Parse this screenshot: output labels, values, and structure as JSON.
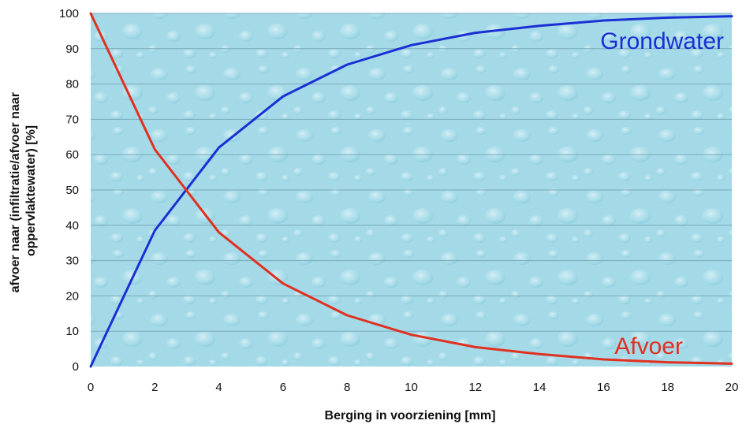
{
  "chart_data": {
    "type": "line",
    "xlabel": "Berging in voorziening [mm]",
    "ylabel_line1": "afvoer naar (infiltratie/afvoer naar",
    "ylabel_line2": "oppervlaktewater) [%]",
    "xlim": [
      0,
      20
    ],
    "ylim": [
      0,
      100
    ],
    "x_ticks": [
      0,
      2,
      4,
      6,
      8,
      10,
      12,
      14,
      16,
      18,
      20
    ],
    "y_ticks": [
      0,
      10,
      20,
      30,
      40,
      50,
      60,
      70,
      80,
      90,
      100
    ],
    "grid": true,
    "x": [
      0,
      2,
      4,
      6,
      8,
      10,
      12,
      14,
      16,
      18,
      20
    ],
    "series": [
      {
        "name": "Grondwater",
        "color": "#1a2fd4",
        "values": [
          0,
          38.5,
          62,
          76.5,
          85.5,
          91,
          94.5,
          96.5,
          98,
          98.8,
          99.2
        ]
      },
      {
        "name": "Afvoer",
        "color": "#e03020",
        "values": [
          100,
          61.5,
          38,
          23.5,
          14.5,
          9,
          5.5,
          3.5,
          2,
          1.2,
          0.8
        ]
      }
    ],
    "plot_background": "#9fd8e6",
    "gridline_color": "#7aaab8"
  }
}
